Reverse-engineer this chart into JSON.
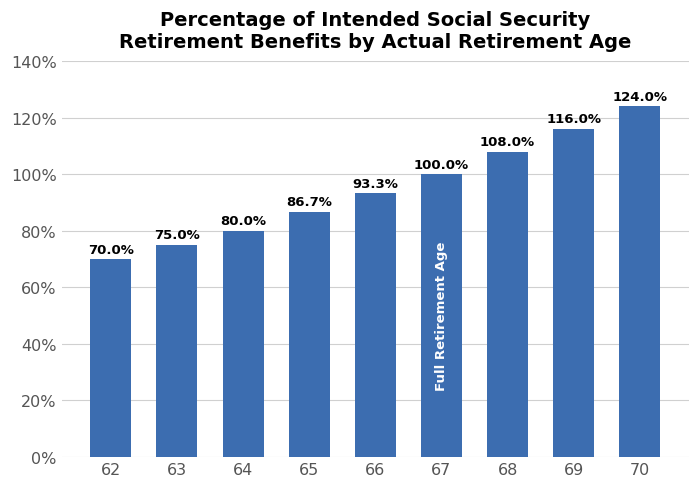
{
  "categories": [
    62,
    63,
    64,
    65,
    66,
    67,
    68,
    69,
    70
  ],
  "values": [
    70.0,
    75.0,
    80.0,
    86.7,
    93.3,
    100.0,
    108.0,
    116.0,
    124.0
  ],
  "bar_color": "#3C6DB0",
  "title_line1": "Percentage of Intended Social Security",
  "title_line2": "Retirement Benefits by Actual Retirement Age",
  "ylim": [
    0,
    140
  ],
  "yticks": [
    0,
    20,
    40,
    60,
    80,
    100,
    120,
    140
  ],
  "label_fontsize": 9.5,
  "title_fontsize": 14,
  "tick_fontsize": 11.5,
  "annotation_bar_index": 5,
  "annotation_text": "Full Retirement Age",
  "annotation_fontsize": 9.5,
  "background_color": "#ffffff",
  "grid_color": "#d0d0d0",
  "tick_color": "#555555"
}
